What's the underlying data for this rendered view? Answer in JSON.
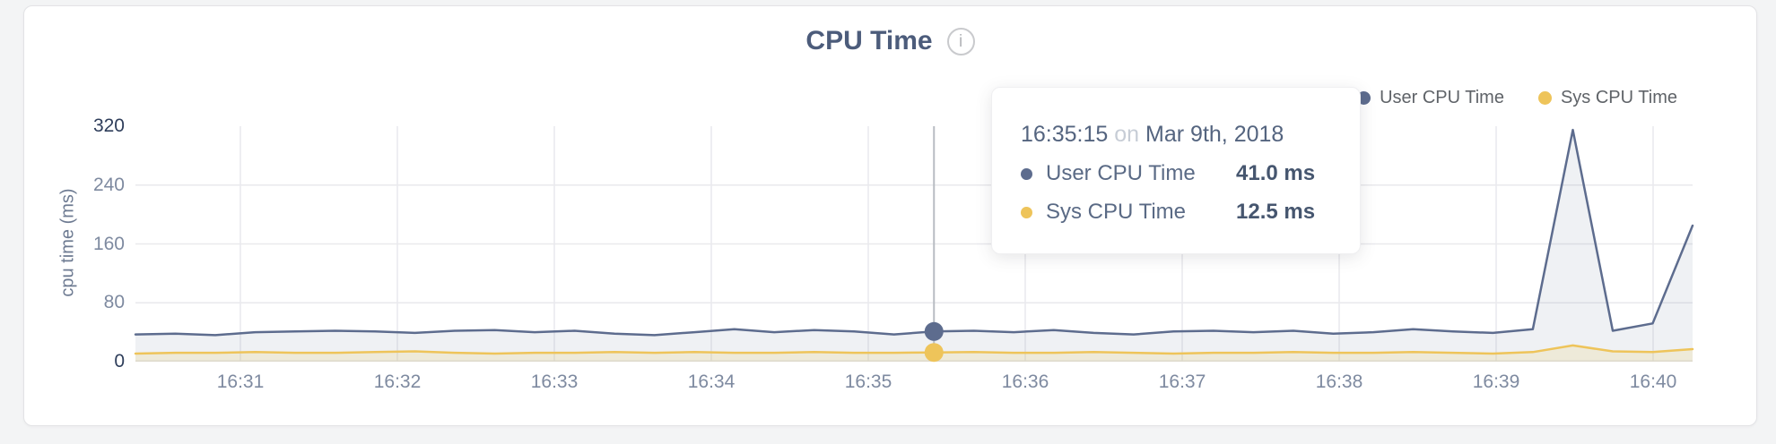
{
  "header": {
    "title": "CPU Time",
    "info_icon": "i"
  },
  "legend": {
    "items": [
      {
        "label": "User CPU Time",
        "color": "#5d6c8e"
      },
      {
        "label": "Sys CPU Time",
        "color": "#eec45a"
      }
    ]
  },
  "tooltip": {
    "time": "16:35:15",
    "connector": "on",
    "date": "Mar 9th, 2018",
    "rows": [
      {
        "label": "User CPU Time",
        "value": "41.0 ms",
        "color": "#5d6c8e"
      },
      {
        "label": "Sys CPU Time",
        "value": "12.5 ms",
        "color": "#eec45a"
      }
    ]
  },
  "chart_data": {
    "type": "area",
    "title": "CPU Time",
    "ylabel": "cpu time (ms)",
    "ylim": [
      0,
      320
    ],
    "y_ticks": [
      0,
      80,
      160,
      240,
      320
    ],
    "x_ticks": [
      "16:31",
      "16:32",
      "16:33",
      "16:34",
      "16:35",
      "16:36",
      "16:37",
      "16:38",
      "16:39",
      "16:40"
    ],
    "x": [
      "16:30:15",
      "16:30:30",
      "16:30:45",
      "16:31:00",
      "16:31:15",
      "16:31:30",
      "16:31:45",
      "16:32:00",
      "16:32:15",
      "16:32:30",
      "16:32:45",
      "16:33:00",
      "16:33:15",
      "16:33:30",
      "16:33:45",
      "16:34:00",
      "16:34:15",
      "16:34:30",
      "16:34:45",
      "16:35:00",
      "16:35:15",
      "16:35:30",
      "16:35:45",
      "16:36:00",
      "16:36:15",
      "16:36:30",
      "16:36:45",
      "16:37:00",
      "16:37:15",
      "16:37:30",
      "16:37:45",
      "16:38:00",
      "16:38:15",
      "16:38:30",
      "16:38:45",
      "16:39:00",
      "16:39:15",
      "16:39:30",
      "16:39:45",
      "16:40:00"
    ],
    "series": [
      {
        "name": "User CPU Time",
        "color": "#5d6c8e",
        "fill": "rgba(99,113,144,0.10)",
        "values": [
          37,
          38,
          36,
          40,
          41,
          42,
          41,
          39,
          42,
          43,
          40,
          42,
          38,
          36,
          40,
          44,
          40,
          43,
          41,
          37,
          41,
          42,
          40,
          43,
          39,
          37,
          41,
          42,
          40,
          42,
          38,
          40,
          44,
          41,
          39,
          44,
          315,
          42,
          52,
          185
        ]
      },
      {
        "name": "Sys CPU Time",
        "color": "#eec45a",
        "fill": "rgba(238,196,83,0.16)",
        "values": [
          11,
          12,
          12,
          13,
          12,
          12,
          13,
          14,
          12,
          11,
          12,
          12,
          13,
          12,
          13,
          12,
          12,
          13,
          12,
          12,
          12.5,
          13,
          12,
          12,
          13,
          12,
          11,
          12,
          12,
          13,
          12,
          12,
          13,
          12,
          11,
          13,
          22,
          14,
          13,
          17
        ]
      }
    ],
    "cursor": {
      "index": 20,
      "time": "16:35:15",
      "line_color": "#b8bcc2"
    },
    "grid": true,
    "grid_color": "#e9e9ed",
    "tick_color": "#7e8aa0",
    "tick_color_ends": "#2f3e5b",
    "legend_position": "top-right"
  }
}
